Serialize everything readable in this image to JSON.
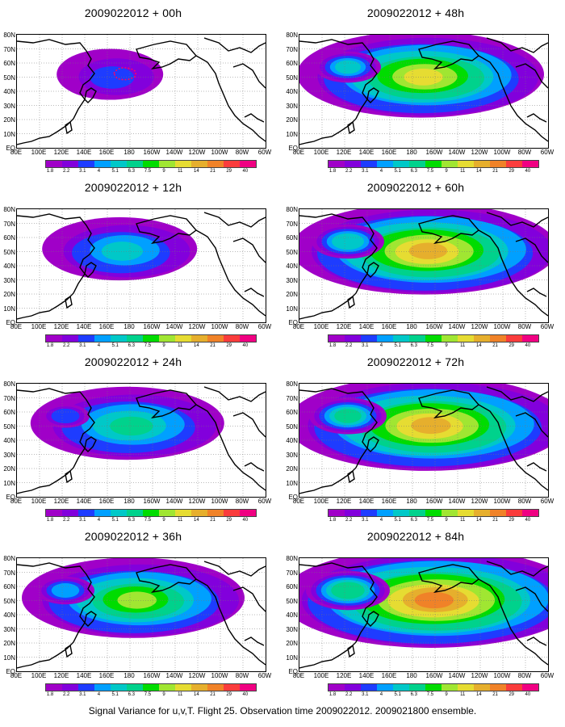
{
  "panels": [
    {
      "title": "2009022012 + 00h",
      "level": 0.12
    },
    {
      "title": "2009022012 + 48h",
      "level": 0.7
    },
    {
      "title": "2009022012 + 12h",
      "level": 0.32
    },
    {
      "title": "2009022012 + 60h",
      "level": 0.78
    },
    {
      "title": "2009022012 + 24h",
      "level": 0.48
    },
    {
      "title": "2009022012 + 72h",
      "level": 0.84
    },
    {
      "title": "2009022012 + 36h",
      "level": 0.6
    },
    {
      "title": "2009022012 + 84h",
      "level": 0.92
    }
  ],
  "lat_labels": [
    "80N",
    "70N",
    "60N",
    "50N",
    "40N",
    "30N",
    "20N",
    "10N",
    "EQ"
  ],
  "lon_labels": [
    "80E",
    "100E",
    "120E",
    "140E",
    "160E",
    "180",
    "160W",
    "140W",
    "120W",
    "100W",
    "80W",
    "60W"
  ],
  "colorbar": {
    "labels": [
      "1.8",
      "2.2",
      "3.1",
      "4",
      "5.1",
      "6.3",
      "7.5",
      "9",
      "11",
      "14",
      "21",
      "29",
      "40"
    ],
    "colors": [
      "#a000c8",
      "#8200dc",
      "#1e3cff",
      "#00a0ff",
      "#00c8c8",
      "#00d28c",
      "#00dc00",
      "#a0e632",
      "#e6dc32",
      "#e6af2d",
      "#f08228",
      "#fa3c3c",
      "#f00082"
    ]
  },
  "caption": "Signal Variance for u,v,T. Flight 25. Observation time 2009022012. 2009021800 ensemble."
}
